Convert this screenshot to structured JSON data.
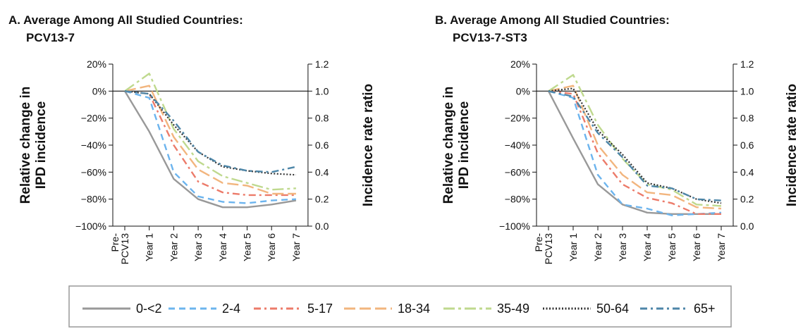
{
  "chart_data": [
    {
      "type": "line",
      "title_line1": "A. Average Among All Studied Countries:",
      "title_line2": "PCV13-7",
      "ylabel_left_line1": "Relative change in",
      "ylabel_left_line2": "IPD incidence",
      "ylabel_right": "Incidence rate ratio",
      "categories": [
        "Pre-PCV13",
        "Year 1",
        "Year 2",
        "Year 3",
        "Year 4",
        "Year 5",
        "Year 6",
        "Year 7"
      ],
      "ylim_left": [
        -100,
        20
      ],
      "yticks_left": [
        "20%",
        "0%",
        "−20%",
        "−40%",
        "−60%",
        "−80%",
        "−100%"
      ],
      "ylim_right": [
        0.0,
        1.2
      ],
      "yticks_right": [
        "1.2",
        "1.0",
        "0.8",
        "0.6",
        "0.4",
        "0.2",
        "0.0"
      ],
      "reference_line_y": 0,
      "series": [
        {
          "name": "0-<2",
          "values": [
            0,
            -30,
            -65,
            -80,
            -86,
            -86,
            -84,
            -81
          ]
        },
        {
          "name": "2-4",
          "values": [
            0,
            -5,
            -60,
            -78,
            -82,
            -83,
            -81,
            -80
          ]
        },
        {
          "name": "5-17",
          "values": [
            0,
            -2,
            -40,
            -67,
            -75,
            -77,
            -77,
            -77
          ]
        },
        {
          "name": "18-34",
          "values": [
            0,
            4,
            -34,
            -58,
            -68,
            -70,
            -76,
            -76
          ]
        },
        {
          "name": "35-49",
          "values": [
            0,
            13,
            -28,
            -52,
            -63,
            -68,
            -73,
            -72
          ]
        },
        {
          "name": "50-64",
          "values": [
            0,
            -2,
            -25,
            -45,
            -56,
            -59,
            -61,
            -62
          ]
        },
        {
          "name": "65+",
          "values": [
            0,
            -2,
            -22,
            -45,
            -55,
            -59,
            -60,
            -56
          ]
        }
      ]
    },
    {
      "type": "line",
      "title_line1": "B. Average Among All Studied Countries:",
      "title_line2": "PCV13-7-ST3",
      "ylabel_left_line1": "Relative change in",
      "ylabel_left_line2": "IPD incidence",
      "ylabel_right": "Incidence rate ratio",
      "categories": [
        "Pre-PCV13",
        "Year 1",
        "Year 2",
        "Year 3",
        "Year 4",
        "Year 5",
        "Year 6",
        "Year 7"
      ],
      "ylim_left": [
        -100,
        20
      ],
      "yticks_left": [
        "20%",
        "0%",
        "−20%",
        "−40%",
        "−60%",
        "−80%",
        "−100%"
      ],
      "ylim_right": [
        0.0,
        1.2
      ],
      "yticks_right": [
        "1.2",
        "1.0",
        "0.8",
        "0.6",
        "0.4",
        "0.2",
        "0.0"
      ],
      "reference_line_y": 0,
      "series": [
        {
          "name": "0-<2",
          "values": [
            0,
            -35,
            -69,
            -84,
            -90,
            -91,
            -91,
            -91
          ]
        },
        {
          "name": "2-4",
          "values": [
            0,
            -5,
            -62,
            -84,
            -87,
            -92,
            -91,
            -90
          ]
        },
        {
          "name": "5-17",
          "values": [
            0,
            -2,
            -46,
            -69,
            -79,
            -83,
            -91,
            -91
          ]
        },
        {
          "name": "18-34",
          "values": [
            0,
            4,
            -40,
            -62,
            -75,
            -77,
            -86,
            -87
          ]
        },
        {
          "name": "35-49",
          "values": [
            0,
            12,
            -25,
            -50,
            -69,
            -73,
            -84,
            -85
          ]
        },
        {
          "name": "50-64",
          "values": [
            0,
            2,
            -29,
            -47,
            -68,
            -72,
            -80,
            -83
          ]
        },
        {
          "name": "65+",
          "values": [
            0,
            -4,
            -31,
            -49,
            -70,
            -72,
            -80,
            -81
          ]
        }
      ]
    }
  ],
  "legend": {
    "items": [
      {
        "label": "0-<2",
        "color": "#999999",
        "dash": "solid"
      },
      {
        "label": "2-4",
        "color": "#6CB4EE",
        "dash": "dash"
      },
      {
        "label": "5-17",
        "color": "#EC7B6A",
        "dash": "dashdot"
      },
      {
        "label": "18-34",
        "color": "#F2B57E",
        "dash": "longdash"
      },
      {
        "label": "35-49",
        "color": "#BFD98E",
        "dash": "longdashdot"
      },
      {
        "label": "50-64",
        "color": "#333333",
        "dash": "dot"
      },
      {
        "label": "65+",
        "color": "#4D86A8",
        "dash": "dashdot"
      }
    ]
  }
}
